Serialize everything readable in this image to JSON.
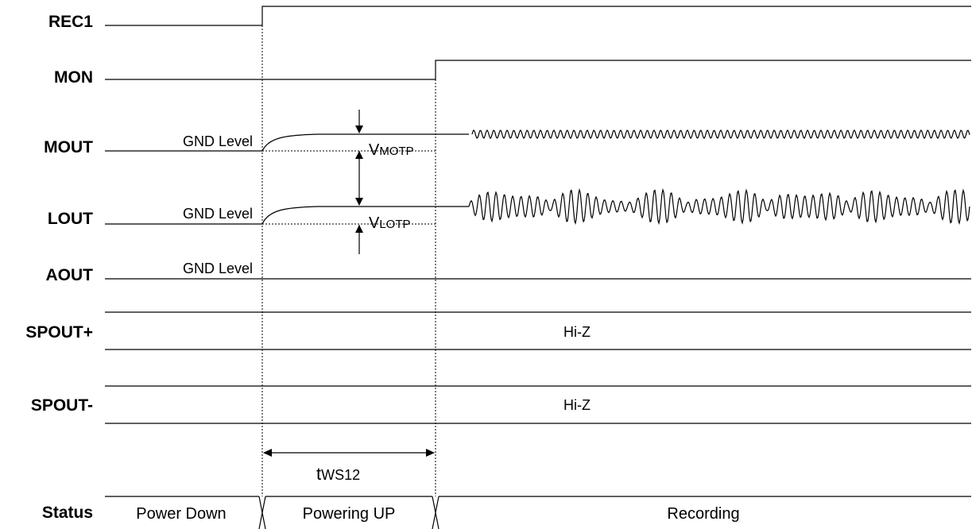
{
  "signals": {
    "rec1": "REC1",
    "mon": "MON",
    "mout": "MOUT",
    "lout": "LOUT",
    "aout": "AOUT",
    "spout_plus": "SPOUT+",
    "spout_minus": "SPOUT-"
  },
  "notes": {
    "mout_level": "GND Level",
    "lout_level": "GND Level",
    "aout_level": "GND Level",
    "spout_plus_state": "Hi-Z",
    "spout_minus_state": "Hi-Z"
  },
  "params": {
    "vmotp_main": "V",
    "vmotp_sub": "MOTP",
    "vlotp_main": "V",
    "vlotp_sub": "LOTP",
    "tws_main": "t",
    "tws_sub": "WS12"
  },
  "status": {
    "label": "Status",
    "phases": [
      "Power Down",
      "Powering UP",
      "Recording"
    ]
  }
}
